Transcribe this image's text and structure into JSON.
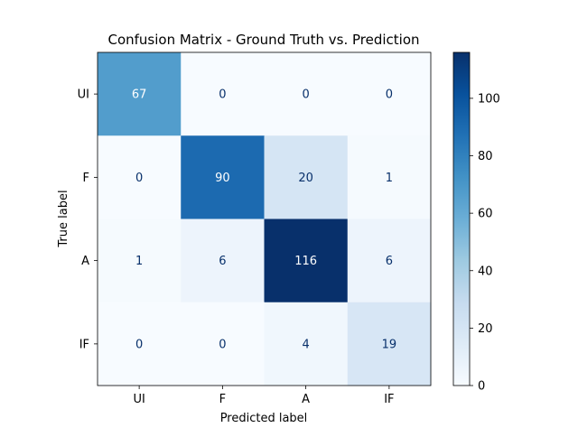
{
  "chart_data": {
    "type": "heatmap",
    "title": "Confusion Matrix - Ground Truth vs. Prediction",
    "xlabel": "Predicted label",
    "ylabel": "True label",
    "x_categories": [
      "UI",
      "F",
      "A",
      "IF"
    ],
    "y_categories": [
      "UI",
      "F",
      "A",
      "IF"
    ],
    "values": [
      [
        67,
        0,
        0,
        0
      ],
      [
        0,
        90,
        20,
        1
      ],
      [
        1,
        6,
        116,
        6
      ],
      [
        0,
        0,
        4,
        19
      ]
    ],
    "colormap": "Blues",
    "color_range": [
      0,
      116
    ],
    "colorbar_ticks": [
      0,
      20,
      40,
      60,
      80,
      100
    ],
    "grid": false
  }
}
